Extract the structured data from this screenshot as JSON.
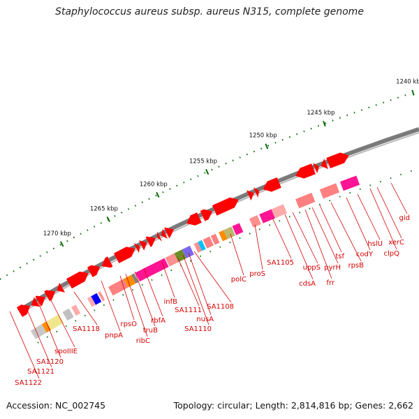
{
  "title": "Staphylococcus aureus subsp. aureus N315, complete genome",
  "footer": {
    "accession": "Accession: NC_002745",
    "summary": "Topology: circular; Length: 2,814,816 bp; Genes: 2,662"
  },
  "colors": {
    "backbone": "#7a7a7a",
    "forward_gene": "#ff0000",
    "reverse_gene": "#ff3030",
    "label": "#d40000",
    "tick": "#0b6b0b"
  },
  "kbp_labels": [
    "1240 kbp",
    "1245 kbp",
    "1250 kbp",
    "1255 kbp",
    "1260 kbp",
    "1265 kbp",
    "1270 kbp"
  ],
  "gene_labels": [
    "gid",
    "xerC",
    "clpQ",
    "hslU",
    "codY",
    "rpsB",
    "tsf",
    "pyrH",
    "frr",
    "uppS",
    "cdsA",
    "SA1105",
    "proS",
    "polC",
    "SA1108",
    "nusA",
    "SA1110",
    "SA1111",
    "infB",
    "rbfA",
    "truB",
    "ribC",
    "rpsO",
    "pnpA",
    "SA1118",
    "spoIIIE",
    "SA1120",
    "SA1121",
    "SA1122"
  ]
}
